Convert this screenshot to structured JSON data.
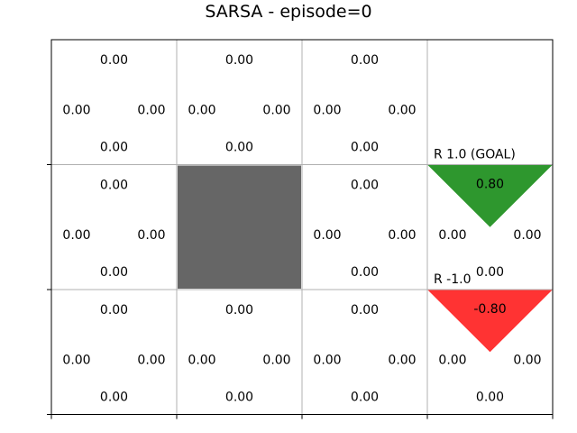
{
  "chart_data": {
    "type": "heatmap",
    "title": "SARSA - episode=0",
    "rows": 3,
    "cols": 4,
    "grid": true,
    "colors": {
      "wall": "#666666",
      "goal": "#2e972e",
      "pit": "#ff3333",
      "grid_line": "#b0b0b0",
      "axis": "#000000"
    },
    "cells": [
      {
        "row": 0,
        "col": 0,
        "type": "normal",
        "q": {
          "up": "0.00",
          "left": "0.00",
          "right": "0.00",
          "down": "0.00"
        }
      },
      {
        "row": 0,
        "col": 1,
        "type": "normal",
        "q": {
          "up": "0.00",
          "left": "0.00",
          "right": "0.00",
          "down": "0.00"
        }
      },
      {
        "row": 0,
        "col": 2,
        "type": "normal",
        "q": {
          "up": "0.00",
          "left": "0.00",
          "right": "0.00",
          "down": "0.00"
        }
      },
      {
        "row": 0,
        "col": 3,
        "type": "empty"
      },
      {
        "row": 1,
        "col": 0,
        "type": "normal",
        "q": {
          "up": "0.00",
          "left": "0.00",
          "right": "0.00",
          "down": "0.00"
        }
      },
      {
        "row": 1,
        "col": 1,
        "type": "wall"
      },
      {
        "row": 1,
        "col": 2,
        "type": "normal",
        "q": {
          "up": "0.00",
          "left": "0.00",
          "right": "0.00",
          "down": "0.00"
        }
      },
      {
        "row": 1,
        "col": 3,
        "type": "goal",
        "label": "R 1.0 (GOAL)",
        "value": "0.80",
        "q": {
          "left": "0.00",
          "right": "0.00",
          "down": "0.00"
        }
      },
      {
        "row": 2,
        "col": 0,
        "type": "normal",
        "q": {
          "up": "0.00",
          "left": "0.00",
          "right": "0.00",
          "down": "0.00"
        }
      },
      {
        "row": 2,
        "col": 1,
        "type": "normal",
        "q": {
          "up": "0.00",
          "left": "0.00",
          "right": "0.00",
          "down": "0.00"
        }
      },
      {
        "row": 2,
        "col": 2,
        "type": "normal",
        "q": {
          "up": "0.00",
          "left": "0.00",
          "right": "0.00",
          "down": "0.00"
        }
      },
      {
        "row": 2,
        "col": 3,
        "type": "pit",
        "label": "R -1.0",
        "value": "-0.80",
        "q": {
          "left": "0.00",
          "right": "0.00",
          "down": "0.00"
        }
      }
    ]
  }
}
